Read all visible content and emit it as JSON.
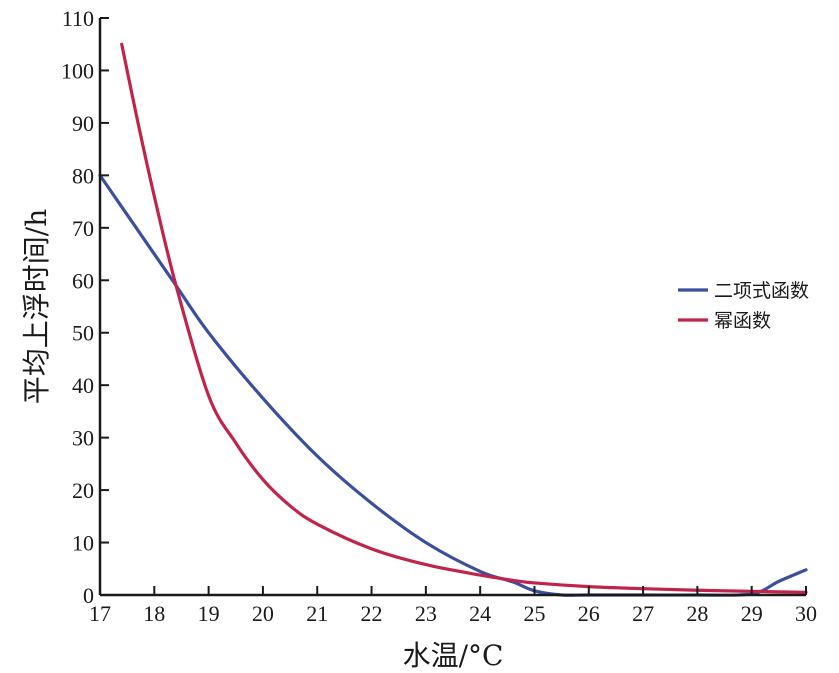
{
  "chart_data": {
    "type": "line",
    "xlabel": "水温/°C",
    "ylabel": "平均上浮时间/h",
    "xlim": [
      17,
      30
    ],
    "ylim": [
      0,
      110
    ],
    "x_ticks": [
      17,
      18,
      19,
      20,
      21,
      22,
      23,
      24,
      25,
      26,
      27,
      28,
      29,
      30
    ],
    "y_ticks": [
      0,
      10,
      20,
      30,
      40,
      50,
      60,
      70,
      80,
      90,
      100,
      110
    ],
    "grid": false,
    "legend": "right",
    "series": [
      {
        "name": "二项式函数",
        "color": "#3b4f9f",
        "x": [
          17,
          18,
          18.4,
          19,
          20,
          21,
          22,
          23,
          24,
          24.6,
          25,
          25.5,
          26,
          27,
          28,
          29,
          29.5,
          30
        ],
        "y": [
          80,
          65,
          59,
          50,
          37.5,
          26.5,
          17.5,
          10,
          4.5,
          2.5,
          0.8,
          0,
          0,
          0,
          0,
          0.2,
          2.6,
          4.8
        ]
      },
      {
        "name": "幂函数",
        "color": "#c0244b",
        "x": [
          17.4,
          17.7,
          18,
          18.4,
          19,
          19.5,
          20,
          20.5,
          21,
          22,
          23,
          24,
          24.6,
          25,
          26,
          27,
          28,
          29,
          30
        ],
        "y": [
          105,
          90,
          76,
          59,
          38,
          29,
          22,
          17,
          13.5,
          8.8,
          5.8,
          3.8,
          2.8,
          2.3,
          1.6,
          1.2,
          0.9,
          0.7,
          0.5
        ]
      }
    ]
  }
}
